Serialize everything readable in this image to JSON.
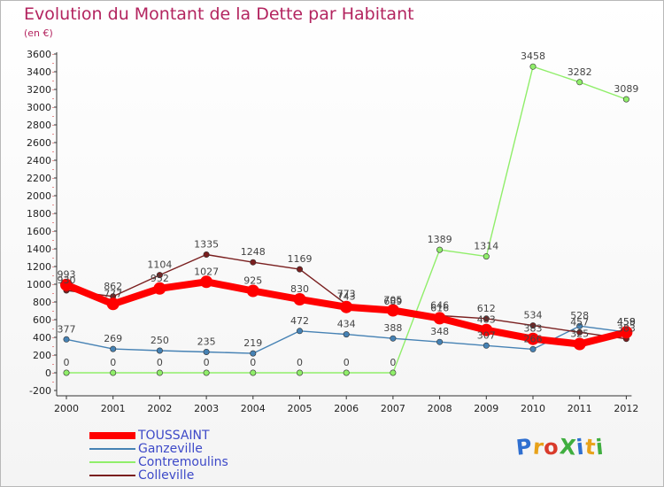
{
  "header": {
    "title": "Evolution du Montant de la Dette par Habitant",
    "subtitle": "(en €)"
  },
  "chart_data": {
    "type": "line",
    "categories": [
      "2000",
      "2001",
      "2002",
      "2003",
      "2004",
      "2005",
      "2006",
      "2007",
      "2008",
      "2009",
      "2010",
      "2011",
      "2012"
    ],
    "ylim": [
      -200,
      3600
    ],
    "yticks": [
      -200,
      0,
      200,
      400,
      600,
      800,
      1000,
      1200,
      1400,
      1600,
      1800,
      2000,
      2200,
      2400,
      2600,
      2800,
      3000,
      3200,
      3400,
      3600
    ],
    "grid": false,
    "legend_position": "bottom-left",
    "series": [
      {
        "name": "TOUSSAINT",
        "color": "#ff0000",
        "values": [
          993,
          777,
          952,
          1027,
          925,
          830,
          743,
          705,
          616,
          483,
          383,
          325,
          458
        ],
        "labels": [
          "993",
          "777",
          "952",
          "1027",
          "925",
          "830",
          "743",
          "705",
          "616",
          "483",
          "383",
          "325",
          "458"
        ]
      },
      {
        "name": "Ganzeville",
        "color": "#4682b4",
        "values": [
          377,
          269,
          250,
          235,
          219,
          472,
          434,
          388,
          348,
          307,
          266,
          528,
          459
        ],
        "labels": [
          "377",
          "269",
          "250",
          "235",
          "219",
          "472",
          "434",
          "388",
          "348",
          "307",
          "266",
          "528",
          "459"
        ]
      },
      {
        "name": "Contremoulins",
        "color": "#90ee6a",
        "values": [
          0,
          0,
          0,
          0,
          0,
          0,
          0,
          0,
          1389,
          1314,
          3458,
          3282,
          3089
        ],
        "labels": [
          "0",
          "0",
          "0",
          "0",
          "0",
          "0",
          "0",
          "0",
          "1389",
          "1314",
          "3458",
          "3282",
          "3089"
        ]
      },
      {
        "name": "Colleville",
        "color": "#7a1f1f",
        "values": [
          930,
          862,
          1104,
          1335,
          1248,
          1169,
          773,
          689,
          646,
          612,
          534,
          457,
          383
        ],
        "labels": [
          "930",
          "862",
          "1104",
          "1335",
          "1248",
          "1169",
          "773",
          "689",
          "646",
          "612",
          "534",
          "457",
          "383"
        ]
      }
    ]
  },
  "logo": {
    "text": "ProXiti",
    "colors": [
      "#2f6fd0",
      "#e8a21a",
      "#d93b2b",
      "#3fae3f",
      "#2f6fd0",
      "#e8a21a",
      "#3fae3f"
    ]
  }
}
